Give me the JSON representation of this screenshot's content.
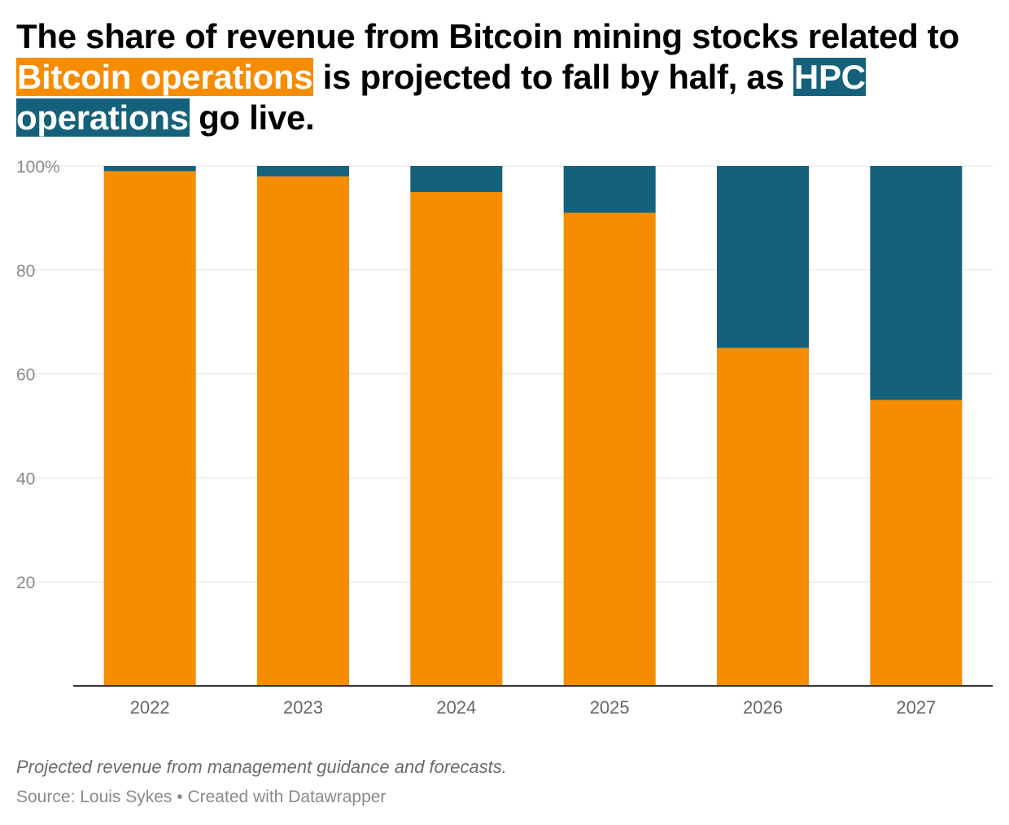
{
  "title": {
    "part1": "The share of revenue from Bitcoin mining stocks related to",
    "highlight_bitcoin": "Bitcoin operations",
    "part2": " is projected to fall by half, as ",
    "highlight_hpc": "HPC operations",
    "part3": " go live."
  },
  "notes": "Projected revenue from management guidance and forecasts.",
  "source": {
    "label": "Source: Louis Sykes",
    "separator": " • ",
    "credit": "Created with Datawrapper"
  },
  "colors": {
    "bitcoin": "#f68c00",
    "hpc": "#15617b",
    "grid": "#e2e2e2",
    "axis": "#333333",
    "tick_text": "#8a8a8a"
  },
  "chart_data": {
    "type": "bar",
    "stacked": true,
    "categories": [
      "2022",
      "2023",
      "2024",
      "2025",
      "2026",
      "2027"
    ],
    "series": [
      {
        "name": "Bitcoin operations",
        "values": [
          99,
          98,
          95,
          91,
          65,
          55
        ]
      },
      {
        "name": "HPC operations",
        "values": [
          1,
          2,
          5,
          9,
          35,
          45
        ]
      }
    ],
    "ylim": [
      0,
      100
    ],
    "yticks": [
      {
        "value": 100,
        "label": "100%"
      },
      {
        "value": 80,
        "label": "80"
      },
      {
        "value": 60,
        "label": "60"
      },
      {
        "value": 40,
        "label": "40"
      },
      {
        "value": 20,
        "label": "20"
      }
    ],
    "grid": true,
    "legend": "none",
    "xlabel": "",
    "ylabel": ""
  }
}
